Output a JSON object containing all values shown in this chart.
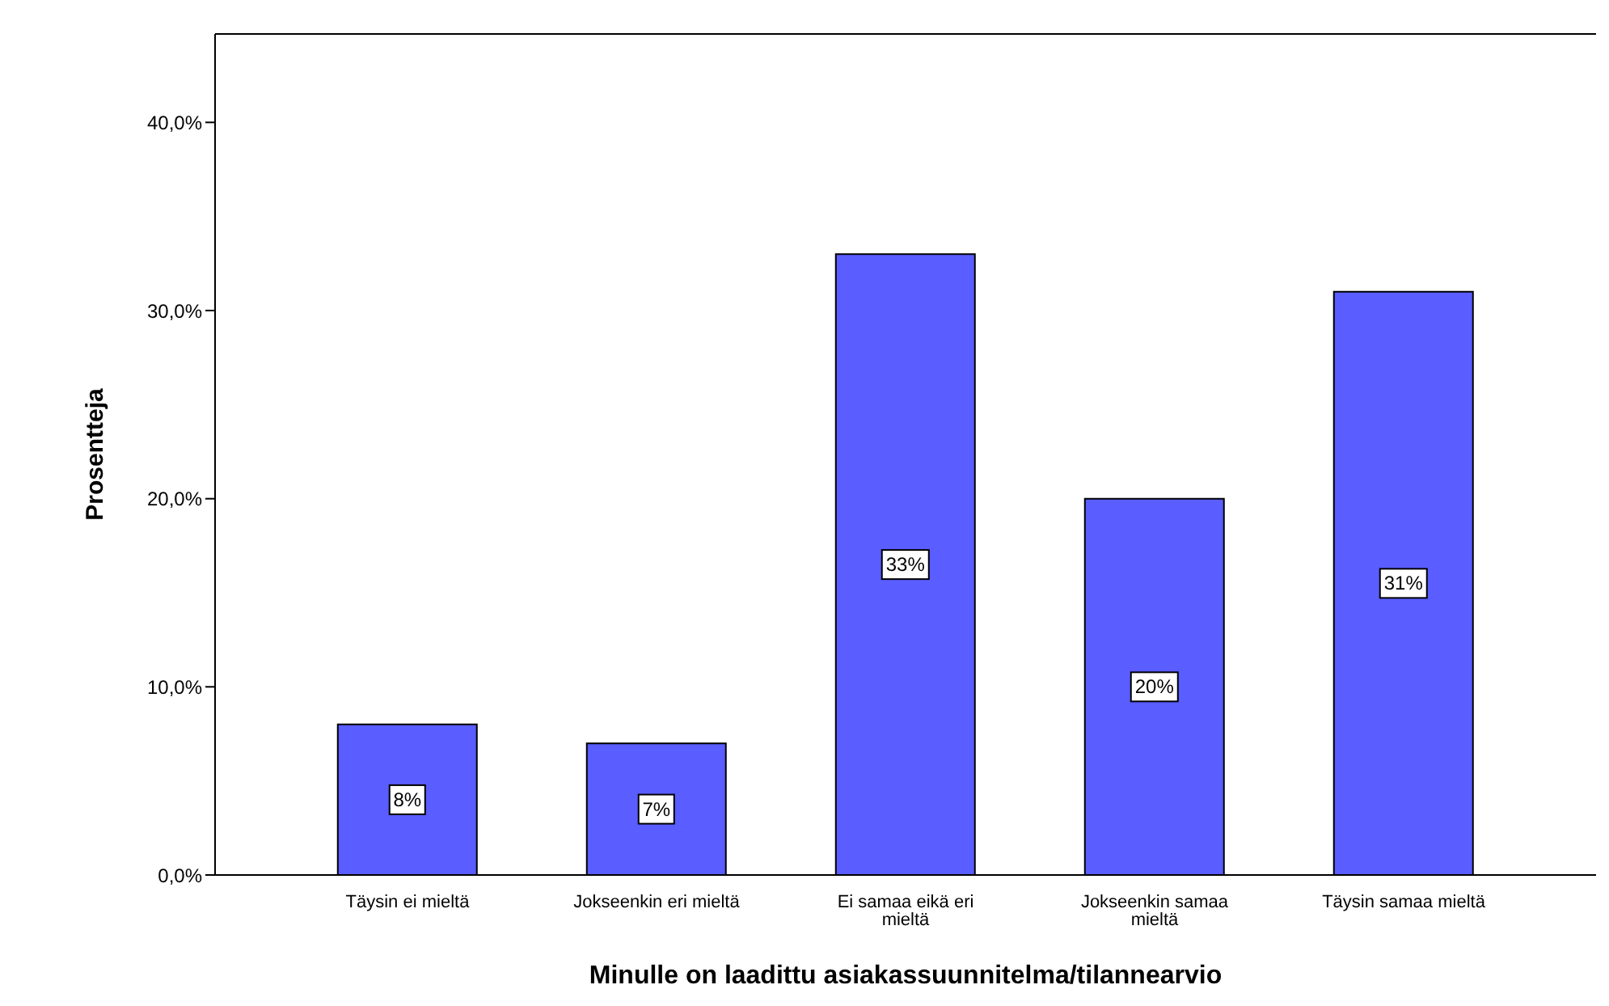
{
  "chart_data": {
    "type": "bar",
    "xlabel": "Minulle on laadittu asiakassuunnitelma/tilannearvio",
    "ylabel": "Prosentteja",
    "categories": [
      "Täysin ei mieltä",
      "Jokseenkin eri mieltä",
      "Ei samaa eikä eri mieltä",
      "Jokseenkin samaa mieltä",
      "Täysin samaa mieltä"
    ],
    "values": [
      8,
      7,
      33,
      20,
      31
    ],
    "value_labels": [
      "8%",
      "7%",
      "33%",
      "20%",
      "31%"
    ],
    "color": "#5a5dff",
    "ylim": [
      0,
      44.7
    ],
    "yticks": [
      {
        "value": 0,
        "label": "0,0%"
      },
      {
        "value": 10,
        "label": "10,0%"
      },
      {
        "value": 20,
        "label": "20,0%"
      },
      {
        "value": 30,
        "label": "30,0%"
      },
      {
        "value": 40,
        "label": "40,0%"
      }
    ],
    "grid": false,
    "legend": false
  }
}
